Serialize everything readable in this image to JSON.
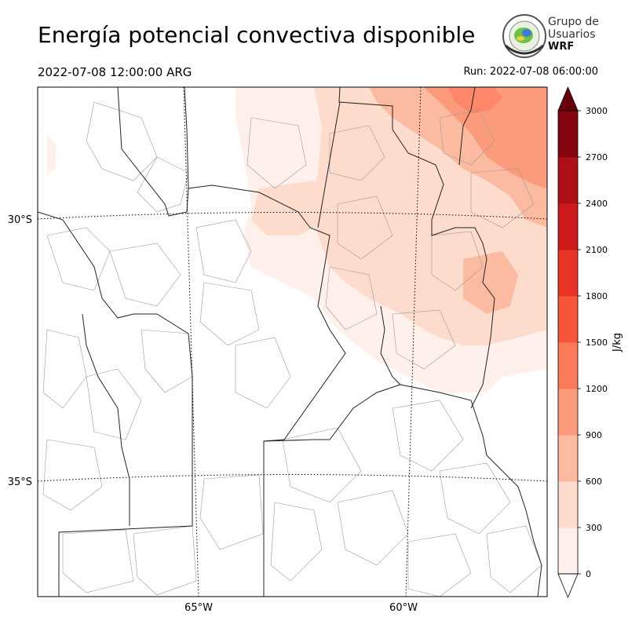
{
  "header": {
    "title": "Energía potencial convectiva disponible",
    "valid_time": "2022-07-08 12:00:00 ARG",
    "run_time": "Run: 2022-07-08 06:00:00"
  },
  "logo": {
    "line1": "Grupo de",
    "line2": "Usuarios",
    "line3": "WRF"
  },
  "map": {
    "lat_labels": [
      "30°S",
      "35°S"
    ],
    "lon_labels": [
      "65°W",
      "60°W"
    ]
  },
  "colorbar": {
    "unit": "J/kg",
    "ticks": [
      "0",
      "300",
      "600",
      "900",
      "1200",
      "1500",
      "1800",
      "2100",
      "2400",
      "2700",
      "3000"
    ],
    "colors": [
      "#fff0eb",
      "#fedccd",
      "#fcbba1",
      "#fc9a7c",
      "#fb7a5a",
      "#f65539",
      "#e93324",
      "#cc1a1d",
      "#ad1117",
      "#85060e",
      "#67000d"
    ]
  }
}
